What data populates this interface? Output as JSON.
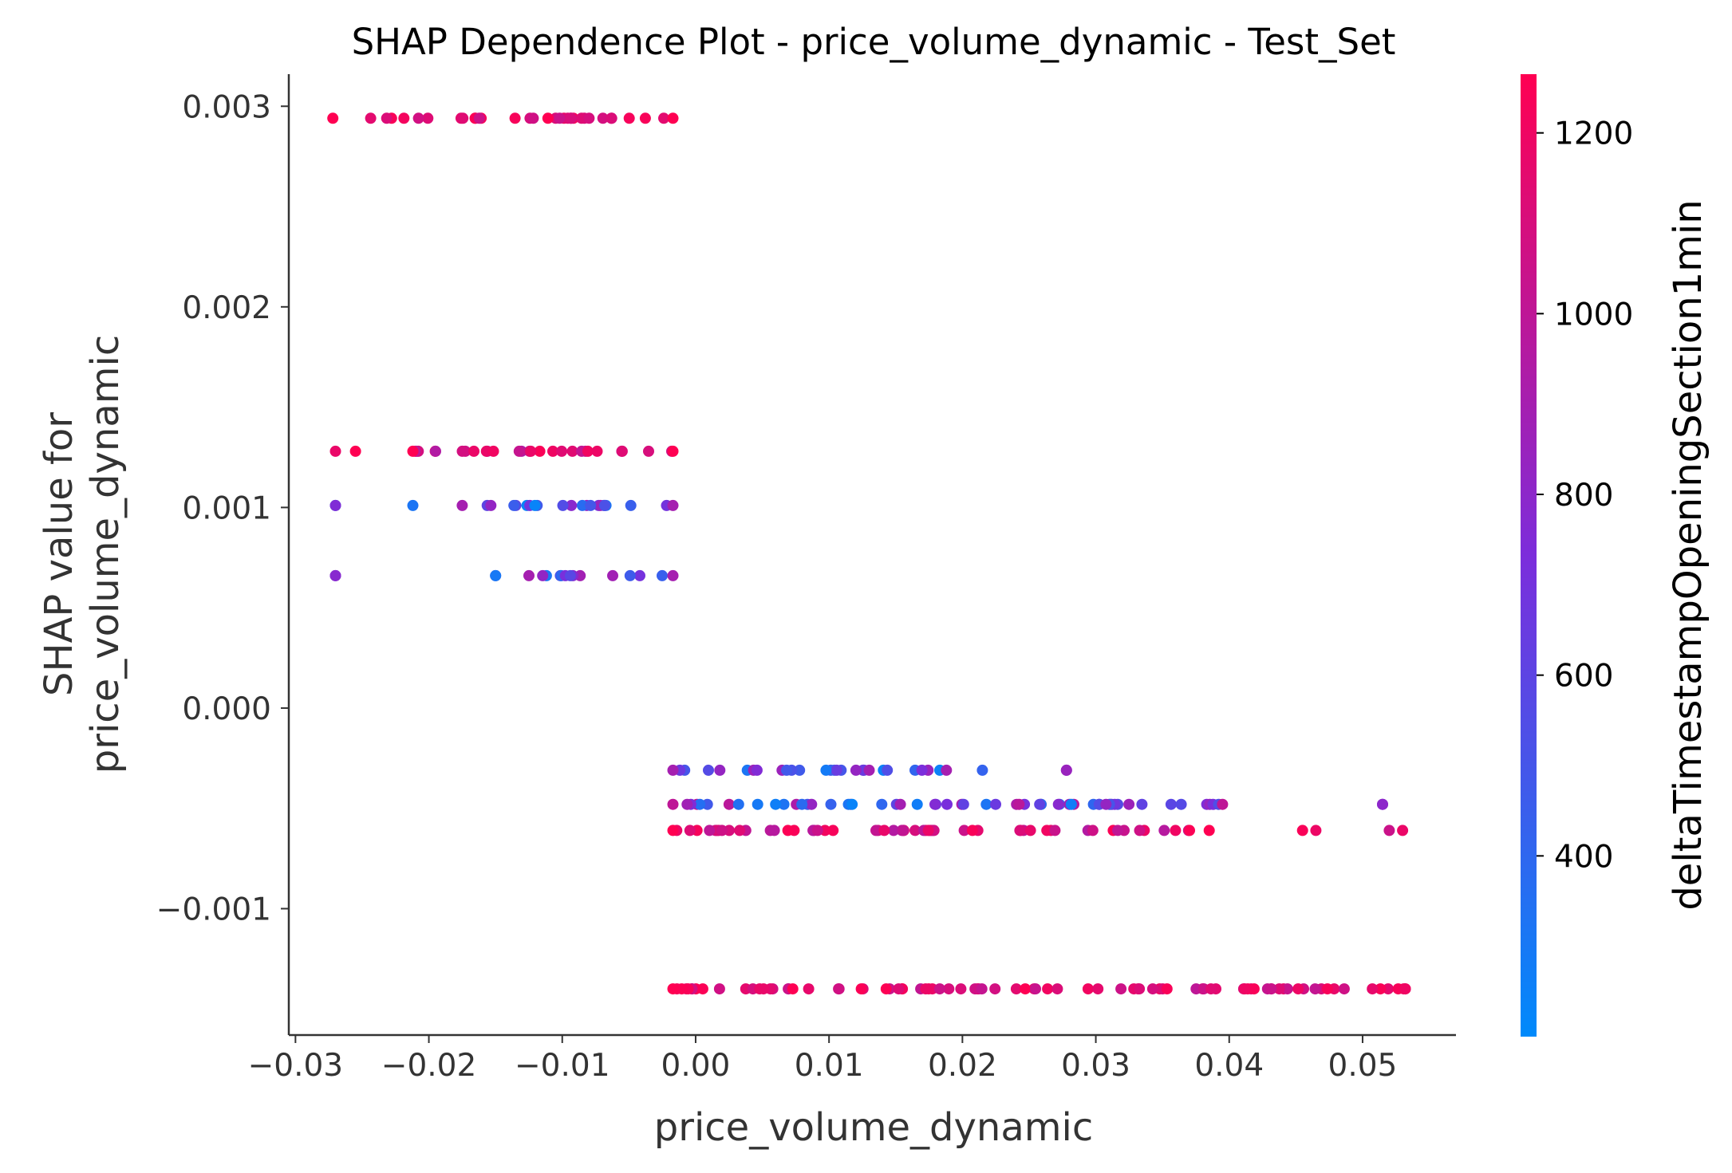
{
  "chart_data": {
    "type": "scatter",
    "title": "SHAP Dependence Plot - price_volume_dynamic - Test_Set",
    "xlabel": "price_volume_dynamic",
    "ylabel_lines": [
      "SHAP value for",
      "price_volume_dynamic"
    ],
    "xlim": [
      -0.0305,
      0.057
    ],
    "ylim": [
      -0.00163,
      0.00316
    ],
    "x_ticks": [
      -0.03,
      -0.02,
      -0.01,
      0.0,
      0.01,
      0.02,
      0.03,
      0.04,
      0.05
    ],
    "x_tick_labels": [
      "−0.03",
      "−0.02",
      "−0.01",
      "0.00",
      "0.01",
      "0.02",
      "0.03",
      "0.04",
      "0.05"
    ],
    "y_ticks": [
      -0.001,
      0.0,
      0.001,
      0.002,
      0.003
    ],
    "y_tick_labels": [
      "−0.001",
      "0.000",
      "0.001",
      "0.002",
      "0.003"
    ],
    "colorbar": {
      "label": "deltaTimestampOpeningSection1min",
      "range": [
        200,
        1265
      ],
      "ticks": [
        400,
        600,
        800,
        1000,
        1200
      ],
      "tick_labels": [
        "400",
        "600",
        "800",
        "1000",
        "1200"
      ],
      "color_low": "#008afb",
      "color_mid": "#7c2ddb",
      "color_high": "#ff0052"
    },
    "grid": false,
    "bands": [
      {
        "y": 0.00294,
        "x_range": [
          -0.0272,
          -0.0017
        ],
        "color_range": [
          1050,
          1265
        ],
        "density": 0.45
      },
      {
        "y": 0.00128,
        "x_range": [
          -0.0212,
          -0.0017
        ],
        "color_range": [
          850,
          1265
        ],
        "density": 0.5,
        "extra_x": [
          -0.027,
          -0.0255
        ]
      },
      {
        "y": 0.00101,
        "x_range": [
          -0.0175,
          -0.0017
        ],
        "color_range": [
          230,
          900
        ],
        "density": 0.45,
        "extra_x": [
          -0.027,
          -0.0212
        ]
      },
      {
        "y": 0.00066,
        "x_range": [
          -0.0125,
          -0.0017
        ],
        "color_range": [
          230,
          900
        ],
        "density": 0.4,
        "extra_x": [
          -0.027,
          -0.015
        ]
      },
      {
        "y": -0.00031,
        "x_range": [
          -0.0017,
          0.0188
        ],
        "color_range": [
          230,
          900
        ],
        "density": 0.45,
        "extra_x": [
          0.0215,
          0.0278
        ]
      },
      {
        "y": -0.00048,
        "x_range": [
          -0.0017,
          0.0395
        ],
        "color_range": [
          230,
          1000
        ],
        "density": 0.5,
        "extra_x": [
          0.0515
        ]
      },
      {
        "y": -0.00061,
        "x_range": [
          -0.0017,
          0.0385
        ],
        "color_range": [
          950,
          1265
        ],
        "density": 0.5,
        "extra_x": [
          0.0455,
          0.0465,
          0.052,
          0.053
        ]
      },
      {
        "y": -0.0014,
        "x_range": [
          -0.0017,
          0.0532
        ],
        "color_range": [
          1000,
          1265
        ],
        "density": 0.55
      }
    ],
    "sample_points": [
      {
        "x": -0.027,
        "y": 0.00101,
        "c": 750
      },
      {
        "x": -0.027,
        "y": 0.00066,
        "c": 780
      },
      {
        "x": -0.015,
        "y": 0.00066,
        "c": 300
      },
      {
        "x": 0.0278,
        "y": -0.00031,
        "c": 850
      },
      {
        "x": 0.0515,
        "y": -0.00048,
        "c": 800
      },
      {
        "x": 0.0532,
        "y": -0.0014,
        "c": 1200
      }
    ]
  }
}
